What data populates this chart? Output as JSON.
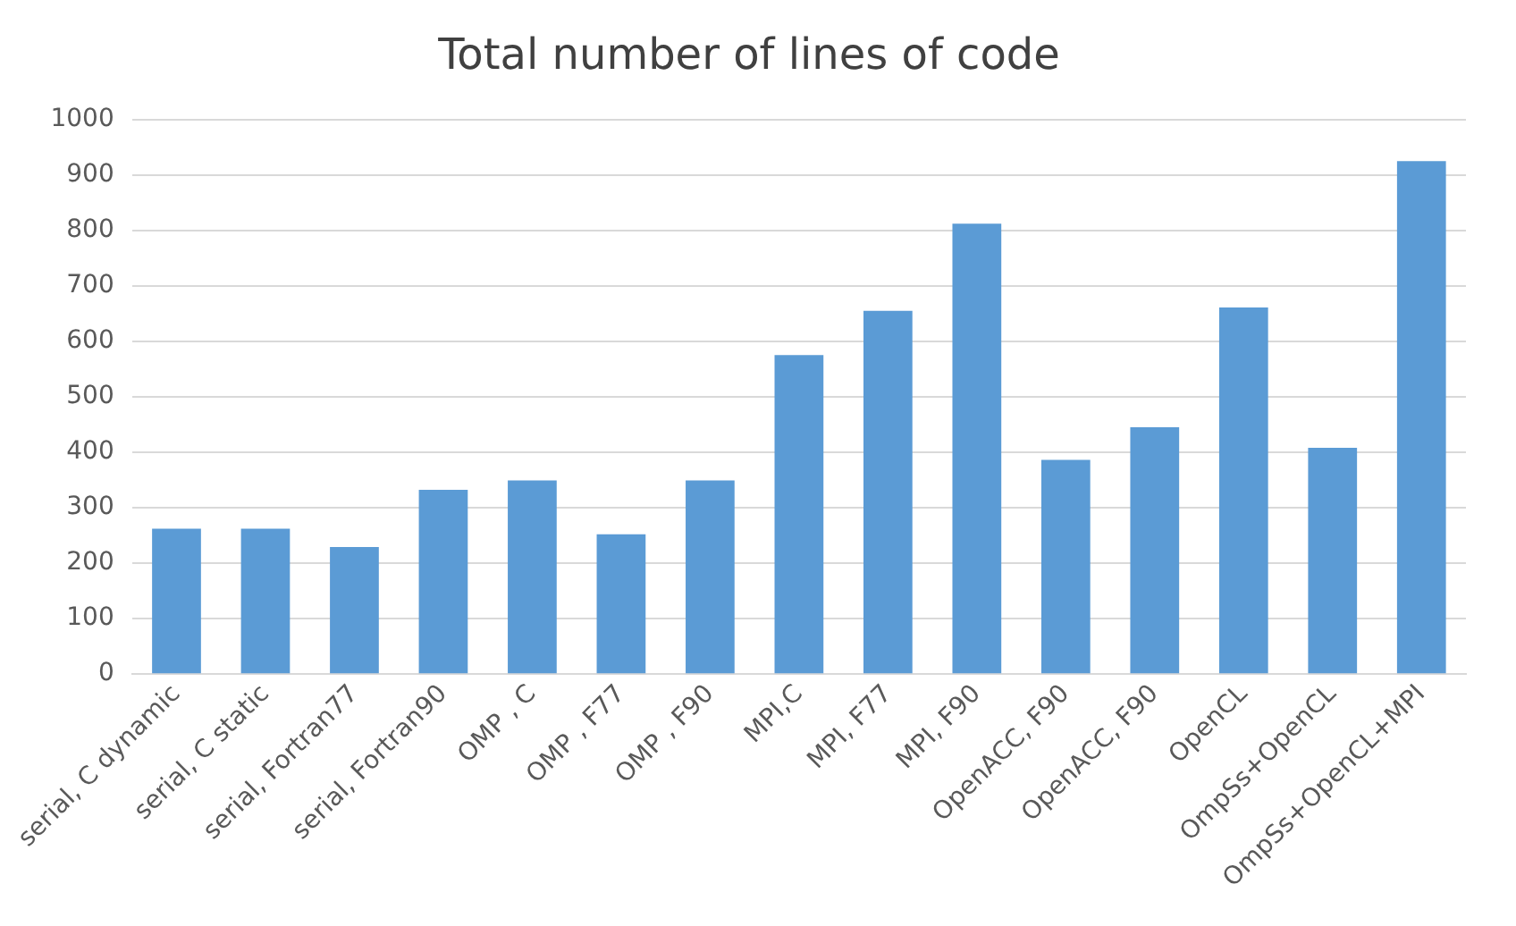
{
  "chart_data": {
    "type": "bar",
    "title": "Total number of lines of code",
    "categories": [
      "serial, C dynamic",
      "serial, C static",
      "serial, Fortran77",
      "serial, Fortran90",
      "OMP , C",
      "OMP , F77",
      "OMP , F90",
      "MPI,C",
      "MPI, F77",
      "MPI, F90",
      "OpenACC, F90",
      "OpenACC, F90",
      "OpenCL",
      "OmpSs+OpenCL",
      "OmpSs+OpenCL+MPI"
    ],
    "values": [
      262,
      262,
      229,
      332,
      349,
      252,
      349,
      575,
      655,
      812,
      386,
      445,
      661,
      408,
      925
    ],
    "color": "#5b9bd5",
    "ylim": [
      0,
      1000
    ],
    "yticks": [
      0,
      100,
      200,
      300,
      400,
      500,
      600,
      700,
      800,
      900,
      1000
    ],
    "grid": "y"
  }
}
